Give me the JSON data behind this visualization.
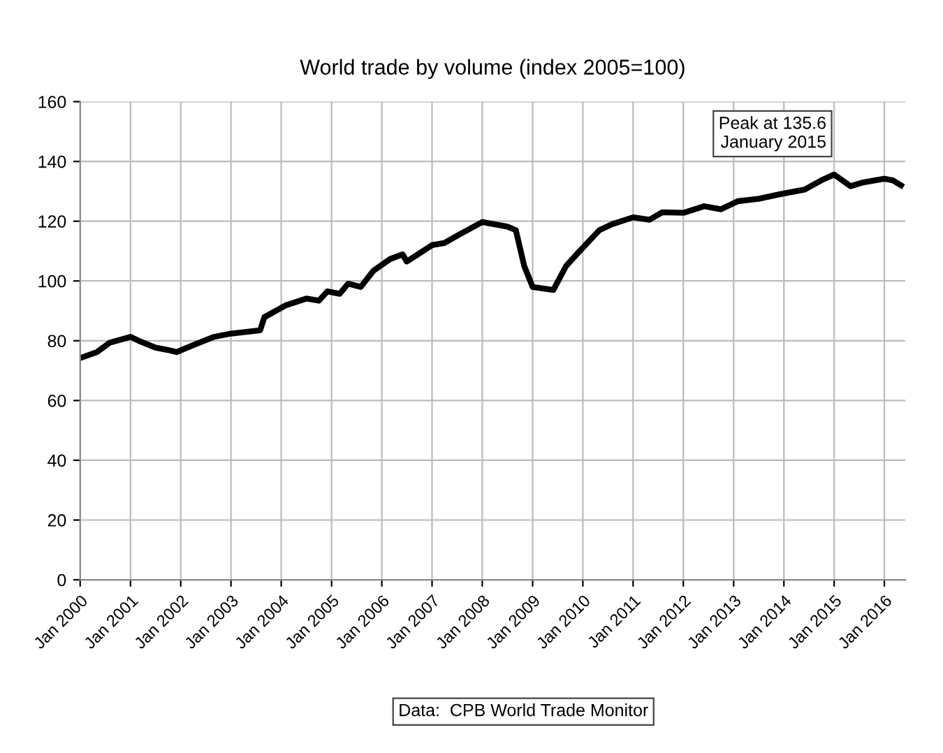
{
  "chart_data": {
    "type": "line",
    "title": "World trade by volume (index 2005=100)",
    "x": [
      "2000-01",
      "2000-05",
      "2000-08",
      "2001-01",
      "2001-03",
      "2001-07",
      "2001-10",
      "2001-12",
      "2002-04",
      "2002-09",
      "2003-01",
      "2003-08",
      "2003-09",
      "2004-02",
      "2004-07",
      "2004-10",
      "2004-12",
      "2005-03",
      "2005-05",
      "2005-08",
      "2005-11",
      "2006-03",
      "2006-06",
      "2006-07",
      "2007-01",
      "2007-04",
      "2007-07",
      "2008-01",
      "2008-07",
      "2008-09",
      "2008-11",
      "2009-01",
      "2009-06",
      "2009-09",
      "2009-12",
      "2010-05",
      "2010-08",
      "2011-01",
      "2011-05",
      "2011-08",
      "2012-01",
      "2012-06",
      "2012-10",
      "2013-02",
      "2013-07",
      "2013-12",
      "2014-06",
      "2014-10",
      "2015-01",
      "2015-05",
      "2015-08",
      "2016-01",
      "2016-03",
      "2016-05"
    ],
    "series": [
      {
        "color": "#000000",
        "values": [
          74.2,
          76.2,
          79.3,
          81.3,
          80,
          77.7,
          76.9,
          76.2,
          78.5,
          81.3,
          82.4,
          83.5,
          87.9,
          91.8,
          94.1,
          93.4,
          96.5,
          95.7,
          99.1,
          98,
          103.4,
          107.3,
          108.9,
          106.5,
          112,
          112.7,
          115.1,
          119.7,
          118.2,
          117,
          105,
          98,
          97,
          105,
          109.6,
          117,
          119,
          121.3,
          120.5,
          123,
          122.8,
          125,
          124,
          126.7,
          127.5,
          129,
          130.6,
          133.7,
          135.6,
          131.7,
          133,
          134.2,
          133.7,
          132
        ]
      }
    ],
    "xlim": [
      "2000-01",
      "2016-06"
    ],
    "xticks": [
      {
        "value": "2000-01",
        "label": "Jan 2000"
      },
      {
        "value": "2001-01",
        "label": "Jan 2001"
      },
      {
        "value": "2002-01",
        "label": "Jan 2002"
      },
      {
        "value": "2003-01",
        "label": "Jan 2003"
      },
      {
        "value": "2004-01",
        "label": "Jan 2004"
      },
      {
        "value": "2005-01",
        "label": "Jan 2005"
      },
      {
        "value": "2006-01",
        "label": "Jan 2006"
      },
      {
        "value": "2007-01",
        "label": "Jan 2007"
      },
      {
        "value": "2008-01",
        "label": "Jan 2008"
      },
      {
        "value": "2009-01",
        "label": "Jan 2009"
      },
      {
        "value": "2010-01",
        "label": "Jan 2010"
      },
      {
        "value": "2011-01",
        "label": "Jan 2011"
      },
      {
        "value": "2012-01",
        "label": "Jan 2012"
      },
      {
        "value": "2013-01",
        "label": "Jan 2013"
      },
      {
        "value": "2014-01",
        "label": "Jan 2014"
      },
      {
        "value": "2015-01",
        "label": "Jan 2015"
      },
      {
        "value": "2016-01",
        "label": "Jan 2016"
      }
    ],
    "ylim": [
      0,
      160
    ],
    "yticks": [
      0,
      20,
      40,
      60,
      80,
      100,
      120,
      140,
      160
    ],
    "grid": true,
    "marker": "none",
    "line_style": "solid",
    "legend": false,
    "annotations": [
      {
        "text": "Peak at 135.6\nJanuary 2015",
        "x": "2015-01",
        "y": 135.6
      },
      "Data:  CPB World Trade Monitor"
    ]
  }
}
